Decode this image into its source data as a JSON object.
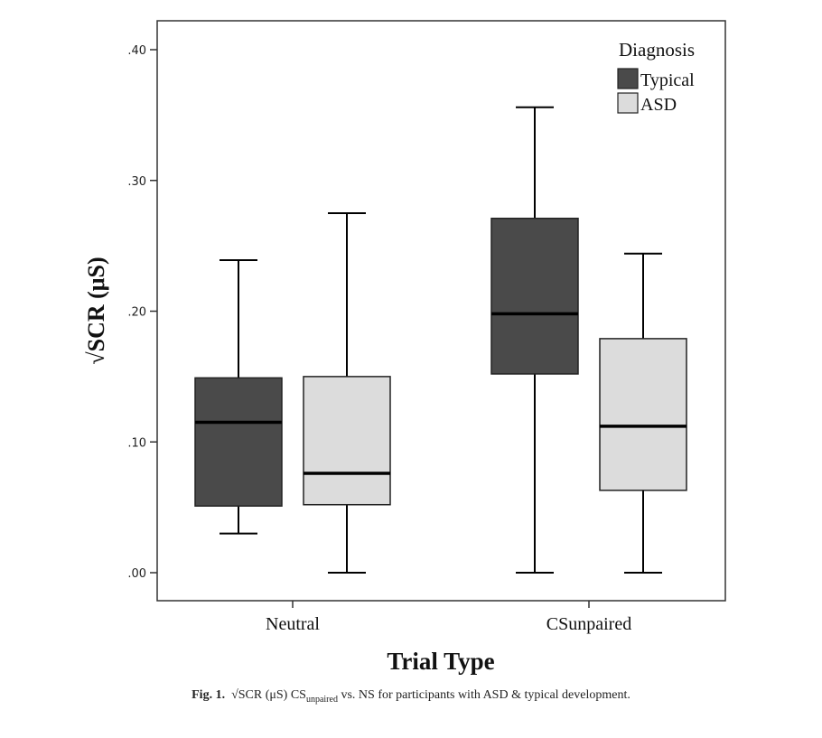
{
  "chart_data": {
    "type": "boxplot",
    "xlabel": "Trial Type",
    "ylabel": "√SCR (μS)",
    "ylim": [
      -0.02,
      0.42
    ],
    "yticks": [
      ".00",
      ".10",
      ".20",
      ".30",
      ".40"
    ],
    "ytick_values": [
      0.0,
      0.1,
      0.2,
      0.3,
      0.4
    ],
    "categories": [
      "Neutral",
      "CSunpaired"
    ],
    "legend": {
      "title": "Diagnosis",
      "position": "top-right"
    },
    "series": [
      {
        "name": "Typical",
        "color": "#4a4a4a",
        "boxes": [
          {
            "category": "Neutral",
            "min": 0.03,
            "q1": 0.051,
            "median": 0.115,
            "q3": 0.149,
            "max": 0.239
          },
          {
            "category": "CSunpaired",
            "min": 0.0,
            "q1": 0.152,
            "median": 0.198,
            "q3": 0.271,
            "max": 0.356
          }
        ]
      },
      {
        "name": "ASD",
        "color": "#dcdcdc",
        "boxes": [
          {
            "category": "Neutral",
            "min": 0.0,
            "q1": 0.052,
            "median": 0.076,
            "q3": 0.15,
            "max": 0.275
          },
          {
            "category": "CSunpaired",
            "min": 0.0,
            "q1": 0.063,
            "median": 0.112,
            "q3": 0.179,
            "max": 0.244
          }
        ]
      }
    ]
  },
  "caption": {
    "label": "Fig. 1.",
    "part1": "√SCR (μS) CS",
    "sub": "unpaired",
    "part2": " vs. NS for participants with ASD & typical development."
  }
}
